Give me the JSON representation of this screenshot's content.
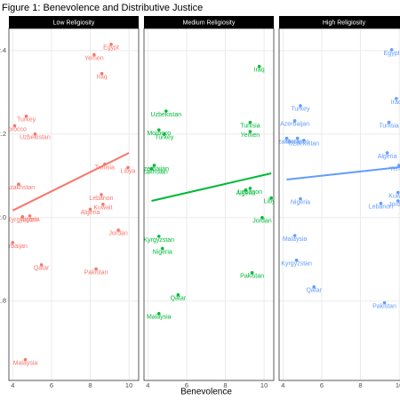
{
  "figure": {
    "title": "Figure 1: Benevolence and Distributive Justice",
    "x_label": "Benevolence"
  },
  "chart_data": [
    {
      "type": "scatter",
      "title": "Low Religiosity",
      "color": "#F8766D",
      "labels": [
        "Egypt",
        "Yemen",
        "Iraq",
        "Turkey",
        "Morocco",
        "Uzbekistan",
        "Tunisia",
        "Libya",
        "Kazakhstan",
        "Lebanon",
        "Kuwait",
        "Algeria",
        "Nigeria",
        "Kyrgyzstan",
        "Jordan",
        "Azerbaijan",
        "Qatar",
        "Pakistan",
        "Malaysia"
      ],
      "x": [
        9.08,
        8.2,
        8.6,
        4.7,
        4.1,
        5.15,
        8.75,
        9.95,
        4.3,
        8.57,
        8.66,
        8.0,
        4.88,
        4.5,
        9.45,
        4.0,
        5.48,
        8.3,
        4.65
      ],
      "y": [
        2.415,
        2.39,
        2.345,
        2.243,
        2.22,
        2.2,
        2.128,
        2.12,
        2.08,
        2.055,
        2.032,
        2.02,
        2.004,
        2.002,
        1.97,
        1.94,
        1.887,
        1.877,
        1.66
      ],
      "trend": {
        "x": [
          4.0,
          10.0
        ],
        "y": [
          2.017,
          2.155
        ]
      },
      "xlim": [
        3.8,
        10.5
      ],
      "ylim": [
        1.61,
        2.453
      ],
      "xticks": [
        4,
        6,
        8,
        10
      ],
      "yticks": [
        {
          "value": 1.8,
          "label": "1.8"
        },
        {
          "value": 2,
          "label": "2.0"
        },
        {
          "value": 2.2,
          "label": "2.2"
        },
        {
          "value": 2.4,
          "label": "2.4"
        }
      ],
      "grid": true
    },
    {
      "type": "scatter",
      "title": "Medium Religiosity",
      "color": "#00BA38",
      "labels": [
        "Iraq",
        "Uzbekistan",
        "Tunisia",
        "Yemen",
        "Morocco",
        "Turkey",
        "Azerbaijan",
        "Kazakhstan",
        "Algeria",
        "Lebanon",
        "Libya",
        "Jordan",
        "Kyrgyzstan",
        "Nigeria",
        "Pakistan",
        "Qatar",
        "Malaysia"
      ],
      "x": [
        9.75,
        4.94,
        9.28,
        9.28,
        4.57,
        4.85,
        4.33,
        4.19,
        9.05,
        9.28,
        10.37,
        9.9,
        4.57,
        4.75,
        9.38,
        5.56,
        4.57
      ],
      "y": [
        2.362,
        2.255,
        2.228,
        2.206,
        2.21,
        2.2,
        2.125,
        2.117,
        2.066,
        2.07,
        2.047,
        2.0,
        1.955,
        1.926,
        1.868,
        1.815,
        1.77
      ],
      "trend": {
        "x": [
          4.19,
          10.37
        ],
        "y": [
          2.04,
          2.106
        ]
      },
      "xlim": [
        3.8,
        10.5
      ],
      "ylim": [
        1.61,
        2.453
      ],
      "xticks": [
        4,
        6,
        8,
        10
      ],
      "yticks": [
        {
          "value": 1.8,
          "label": "1.8"
        },
        {
          "value": 2,
          "label": "2.0"
        },
        {
          "value": 2.2,
          "label": "2.2"
        },
        {
          "value": 2.4,
          "label": "2.4"
        }
      ],
      "grid": true
    },
    {
      "type": "scatter",
      "title": "High Religiosity",
      "color": "#619CFF",
      "labels": [
        "Egypt",
        "Iraq",
        "Turkey",
        "Tunisia",
        "Azerbaijan",
        "Morocco",
        "Kazakhstan",
        "Uzbekistan",
        "Algeria",
        "Yemen",
        "Kuwait",
        "Lebanon",
        "Jordan",
        "Nigeria",
        "Malaysia",
        "Kyrgyzstan",
        "Qatar",
        "Pakistan"
      ],
      "x": [
        9.61,
        9.85,
        4.9,
        9.47,
        4.61,
        4.75,
        4.19,
        5.08,
        9.38,
        9.99,
        9.94,
        9.05,
        9.94,
        4.9,
        4.61,
        4.7,
        5.6,
        9.24
      ],
      "y": [
        2.402,
        2.285,
        2.268,
        2.228,
        2.232,
        2.19,
        2.19,
        2.185,
        2.155,
        2.125,
        2.06,
        2.034,
        2.04,
        2.045,
        1.957,
        1.898,
        1.834,
        1.796
      ],
      "trend": {
        "x": [
          4.19,
          10.04
        ],
        "y": [
          2.091,
          2.121
        ]
      },
      "xlim": [
        3.8,
        10.5
      ],
      "ylim": [
        1.61,
        2.453
      ],
      "xticks": [
        4,
        6,
        8,
        10
      ],
      "yticks": [
        {
          "value": 1.8,
          "label": "1.8"
        },
        {
          "value": 2,
          "label": "2.0"
        },
        {
          "value": 2.2,
          "label": "2.2"
        },
        {
          "value": 2.4,
          "label": "2.4"
        }
      ],
      "grid": true
    }
  ]
}
